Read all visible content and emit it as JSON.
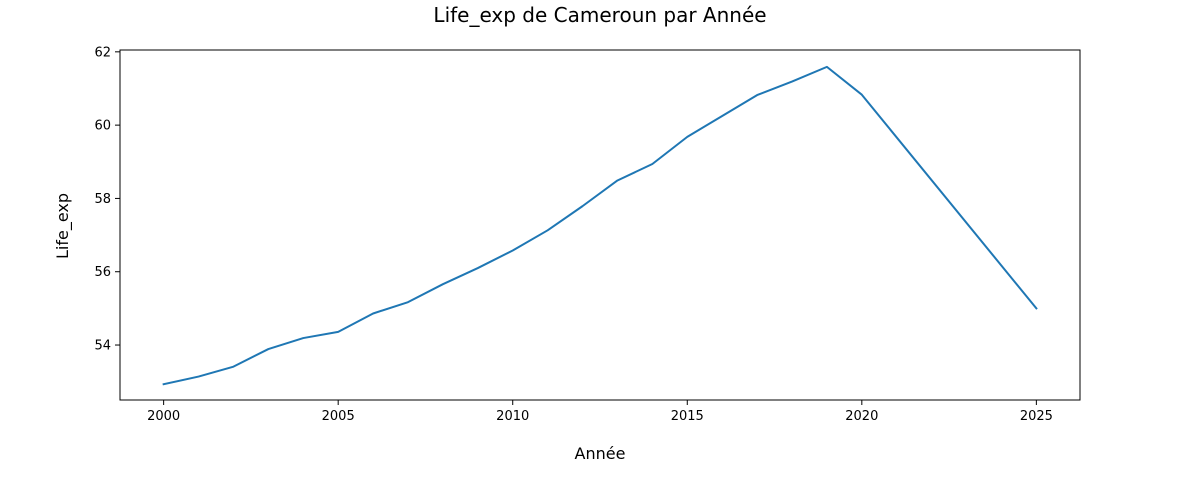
{
  "chart_data": {
    "type": "line",
    "title": "Life_exp de Cameroun par Année",
    "xlabel": "Année",
    "ylabel": "Life_exp",
    "xlim": [
      1998.75,
      2026.25
    ],
    "ylim": [
      52.5,
      62.05
    ],
    "xticks": [
      2000,
      2005,
      2010,
      2015,
      2020,
      2025
    ],
    "yticks": [
      54,
      56,
      58,
      60,
      62
    ],
    "grid": false,
    "color": "#1f77b4",
    "series": [
      {
        "x": [
          2000,
          2001,
          2002,
          2003,
          2004,
          2005,
          2006,
          2007,
          2008,
          2009,
          2010,
          2011,
          2012,
          2013,
          2014,
          2015,
          2016,
          2017,
          2018,
          2019,
          2020,
          2025
        ],
        "values": [
          52.93,
          53.14,
          53.41,
          53.89,
          54.19,
          54.36,
          54.86,
          55.17,
          55.66,
          56.1,
          56.58,
          57.13,
          57.79,
          58.49,
          58.94,
          59.68,
          60.25,
          60.82,
          61.19,
          61.59,
          60.83,
          55.0
        ]
      }
    ]
  }
}
